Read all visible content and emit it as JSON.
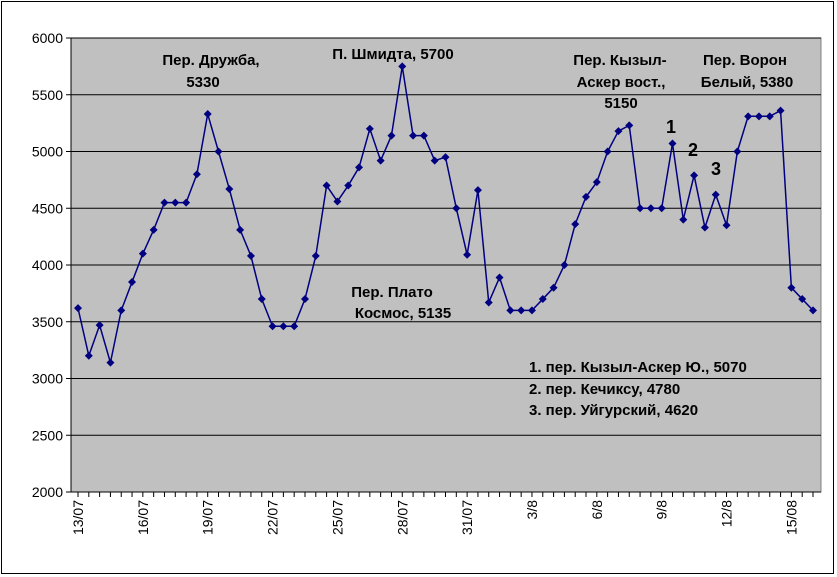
{
  "colors": {
    "plot_bg": "#c0c0c0",
    "series": "#000080",
    "grid": "#000000"
  },
  "chart_data": {
    "type": "line",
    "title": "",
    "xlabel": "",
    "ylabel": "",
    "ylim": [
      2000,
      6000
    ],
    "yticks": [
      "6000",
      "5500",
      "5000",
      "4500",
      "4000",
      "3500",
      "3000",
      "2500",
      "2000"
    ],
    "grid": "horizontal",
    "legend": "none",
    "x_tick_labels": [
      "13/07",
      "16/07",
      "19/07",
      "22/07",
      "25/07",
      "28/07",
      "31/07",
      "3/8",
      "6/8",
      "9/8",
      "12/8",
      "15/08"
    ],
    "series": [
      {
        "marker": "diamond",
        "values": [
          3620,
          3200,
          3470,
          3140,
          3600,
          3850,
          4100,
          4310,
          4550,
          4550,
          4550,
          4800,
          5330,
          5000,
          4670,
          4310,
          4080,
          3700,
          3460,
          3460,
          3460,
          3700,
          4080,
          4700,
          4560,
          4700,
          4860,
          5200,
          4920,
          5140,
          5750,
          5140,
          5140,
          4920,
          4950,
          4500,
          4090,
          4660,
          3670,
          3890,
          3600,
          3600,
          3600,
          3700,
          3800,
          4000,
          4360,
          4600,
          4730,
          5000,
          5180,
          5230,
          4500,
          4500,
          4500,
          5070,
          4400,
          4790,
          4330,
          4620,
          4350,
          5000,
          5310,
          5310,
          5310,
          5360,
          3800,
          3700,
          3600
        ]
      }
    ],
    "annotations": [
      {
        "line1": "Пер. Дружба,",
        "line2": "5330"
      },
      {
        "line1": "П. Шмидта, 5700"
      },
      {
        "line1": "Пер. Кызыл-",
        "line2": "Аскер вост.,",
        "line3": "5150"
      },
      {
        "line1": "Пер. Ворон",
        "line2": "Белый, 5380"
      },
      {
        "line1": "Пер. Плато",
        "line2": "Космос, 5135"
      },
      {
        "line1": "1"
      },
      {
        "line1": "2"
      },
      {
        "line1": "3"
      },
      {
        "line1": "1. пер. Кызыл-Аскер Ю., 5070"
      },
      {
        "line1": "2. пер. Кечиксу, 4780"
      },
      {
        "line1": "3. пер. Уйгурский, 4620"
      }
    ]
  }
}
